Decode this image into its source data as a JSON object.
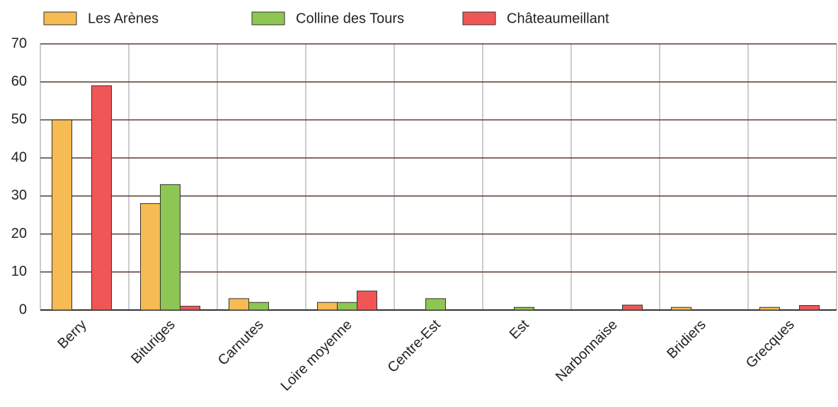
{
  "chart_data": {
    "type": "bar",
    "categories": [
      "Berry",
      "Bituriges",
      "Carnutes",
      "Loire moyenne",
      "Centre-Est",
      "Est",
      "Narbonnaise",
      "Bridiers",
      "Grecques"
    ],
    "series": [
      {
        "name": "Les Arènes",
        "color": "#f6bb52",
        "values": [
          50,
          28,
          3,
          2,
          0,
          0,
          0,
          0.7,
          0.7
        ]
      },
      {
        "name": "Colline des Tours",
        "color": "#8ec653",
        "values": [
          0,
          33,
          2,
          2,
          3,
          0.7,
          0,
          0,
          0
        ]
      },
      {
        "name": "Châteaumeillant",
        "color": "#f05656",
        "values": [
          59,
          1,
          0,
          5,
          0,
          0,
          1.3,
          0,
          1.2
        ]
      }
    ],
    "ylim": [
      0,
      70
    ],
    "yticks": [
      0,
      10,
      20,
      30,
      40,
      50,
      60,
      70
    ],
    "grid": true,
    "legend": "top"
  }
}
